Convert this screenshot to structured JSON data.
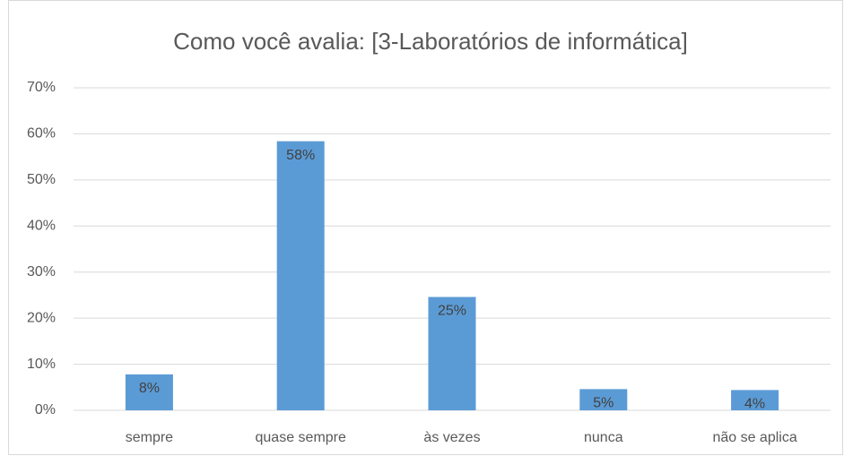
{
  "chart_data": {
    "type": "bar",
    "title": "Como você avalia: [3-Laboratórios de informática]",
    "categories": [
      "sempre",
      "quase sempre",
      "às vezes",
      "nunca",
      "não se aplica"
    ],
    "values": [
      7.8,
      58.4,
      24.6,
      4.6,
      4.4
    ],
    "value_labels": [
      "8%",
      "58%",
      "25%",
      "5%",
      "4%"
    ],
    "color": "#5b9bd5",
    "ylim": [
      0,
      70
    ],
    "yticks": [
      {
        "value": 0,
        "label": "0%"
      },
      {
        "value": 10,
        "label": "10%"
      },
      {
        "value": 20,
        "label": "20%"
      },
      {
        "value": 30,
        "label": "30%"
      },
      {
        "value": 40,
        "label": "40%"
      },
      {
        "value": 50,
        "label": "50%"
      },
      {
        "value": 60,
        "label": "60%"
      },
      {
        "value": 70,
        "label": "70%"
      }
    ],
    "grid": true
  }
}
